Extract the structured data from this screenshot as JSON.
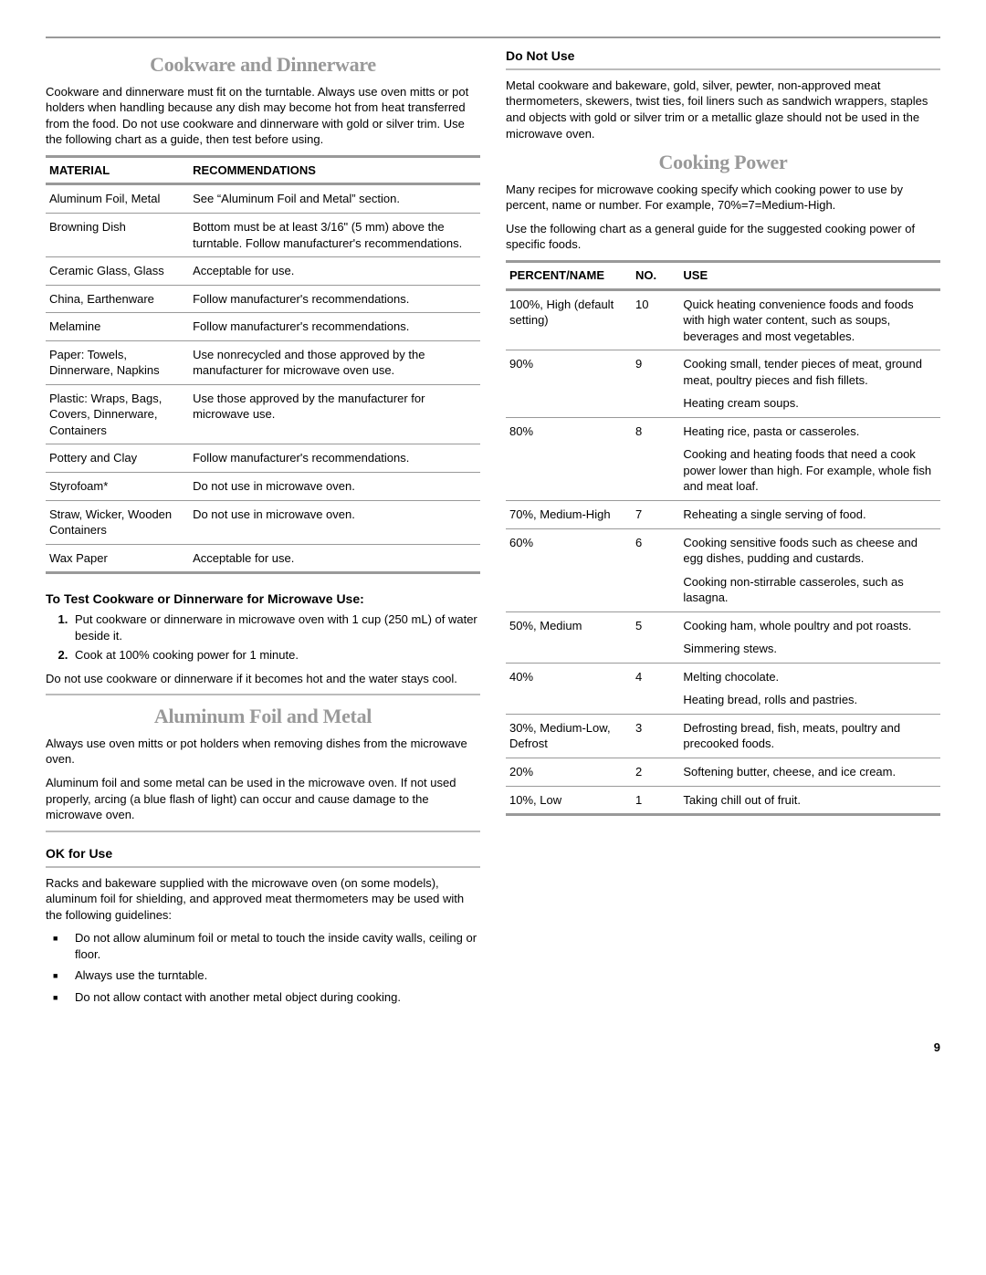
{
  "page_number": "9",
  "top_rule_color": "#999999",
  "left": {
    "cookware": {
      "heading": "Cookware and Dinnerware",
      "intro": "Cookware and dinnerware must fit on the turntable. Always use oven mitts or pot holders when handling because any dish may become hot from heat transferred from the food. Do not use cookware and dinnerware with gold or silver trim. Use the following chart as a guide, then test before using.",
      "table": {
        "headers": {
          "c1": "MATERIAL",
          "c2": "RECOMMENDATIONS"
        },
        "col_widths": {
          "c1": "33%",
          "c2": "67%"
        },
        "rows": [
          {
            "c1": "Aluminum Foil, Metal",
            "c2": "See “Aluminum Foil and Metal” section."
          },
          {
            "c1": "Browning Dish",
            "c2": "Bottom must be at least 3/16\" (5 mm) above the turntable. Follow manufacturer's recommendations."
          },
          {
            "c1": "Ceramic Glass, Glass",
            "c2": "Acceptable for use."
          },
          {
            "c1": "China, Earthenware",
            "c2": "Follow manufacturer's recommendations."
          },
          {
            "c1": "Melamine",
            "c2": "Follow manufacturer's recommendations."
          },
          {
            "c1": "Paper: Towels, Dinnerware, Napkins",
            "c2": "Use nonrecycled and those approved by the manufacturer for microwave oven use."
          },
          {
            "c1": "Plastic: Wraps, Bags, Covers, Dinnerware, Containers",
            "c2": "Use those approved by the manufacturer for microwave use."
          },
          {
            "c1": "Pottery and Clay",
            "c2": "Follow manufacturer's recommendations."
          },
          {
            "c1": "Styrofoam*",
            "c2": "Do not use in microwave oven."
          },
          {
            "c1": "Straw, Wicker, Wooden Containers",
            "c2": "Do not use in microwave oven."
          },
          {
            "c1": "Wax Paper",
            "c2": "Acceptable for use."
          }
        ]
      },
      "test_heading": "To Test Cookware or Dinnerware for Microwave Use:",
      "test_steps": [
        "Put cookware or dinnerware in microwave oven with 1 cup (250 mL) of water beside it.",
        "Cook at 100% cooking power for 1 minute."
      ],
      "test_note": "Do not use cookware or dinnerware if it becomes hot and the water stays cool."
    },
    "foil": {
      "heading": "Aluminum Foil and Metal",
      "p1": "Always use oven mitts or pot holders when removing dishes from the microwave oven.",
      "p2": "Aluminum foil and some metal can be used in the microwave oven. If not used properly, arcing (a blue flash of light) can occur and cause damage to the microwave oven.",
      "ok_heading": "OK for Use",
      "ok_intro": "Racks and bakeware supplied with the microwave oven (on some models), aluminum foil for shielding, and approved meat thermometers may be used with the following guidelines:",
      "ok_bullets": [
        "Do not allow aluminum foil or metal to touch the inside cavity walls, ceiling or floor.",
        "Always use the turntable.",
        "Do not allow contact with another metal object during cooking."
      ]
    }
  },
  "right": {
    "donotuse": {
      "heading": "Do Not Use",
      "body": "Metal cookware and bakeware, gold, silver, pewter, non-approved meat thermometers, skewers, twist ties, foil liners such as sandwich wrappers, staples and objects with gold or silver trim or a metallic glaze should not be used in the microwave oven."
    },
    "power": {
      "heading": "Cooking Power",
      "p1": "Many recipes for microwave cooking specify which cooking power to use by percent, name or number. For example, 70%=7=Medium-High.",
      "p2": "Use the following chart as a general guide for the suggested cooking power of specific foods.",
      "table": {
        "headers": {
          "c1": "PERCENT/NAME",
          "c2": "NO.",
          "c3": "USE"
        },
        "col_widths": {
          "c1": "29%",
          "c2": "11%",
          "c3": "60%"
        },
        "rows": [
          {
            "c1": "100%, High (default setting)",
            "c2": "10",
            "uses": [
              "Quick heating convenience foods and foods with high water content, such as soups, beverages and most vegetables."
            ]
          },
          {
            "c1": "90%",
            "c2": "9",
            "uses": [
              "Cooking small, tender pieces of meat, ground meat, poultry pieces and fish fillets.",
              "Heating cream soups."
            ]
          },
          {
            "c1": "80%",
            "c2": "8",
            "uses": [
              "Heating rice, pasta or casseroles.",
              "Cooking and heating foods that need a cook power lower than high. For example, whole fish and meat loaf."
            ]
          },
          {
            "c1": "70%, Medium-High",
            "c2": "7",
            "uses": [
              "Reheating a single serving of food."
            ]
          },
          {
            "c1": "60%",
            "c2": "6",
            "uses": [
              "Cooking sensitive foods such as cheese and egg dishes, pudding and custards.",
              "Cooking non-stirrable casseroles, such as lasagna."
            ]
          },
          {
            "c1": "50%, Medium",
            "c2": "5",
            "uses": [
              "Cooking ham, whole poultry and pot roasts.",
              "Simmering stews."
            ]
          },
          {
            "c1": "40%",
            "c2": "4",
            "uses": [
              "Melting chocolate.",
              "Heating bread, rolls and pastries."
            ]
          },
          {
            "c1": "30%, Medium-Low, Defrost",
            "c2": "3",
            "uses": [
              "Defrosting bread, fish, meats, poultry and precooked foods."
            ]
          },
          {
            "c1": "20%",
            "c2": "2",
            "uses": [
              "Softening butter, cheese, and ice cream."
            ]
          },
          {
            "c1": "10%, Low",
            "c2": "1",
            "uses": [
              "Taking chill out of fruit."
            ]
          }
        ]
      }
    }
  }
}
